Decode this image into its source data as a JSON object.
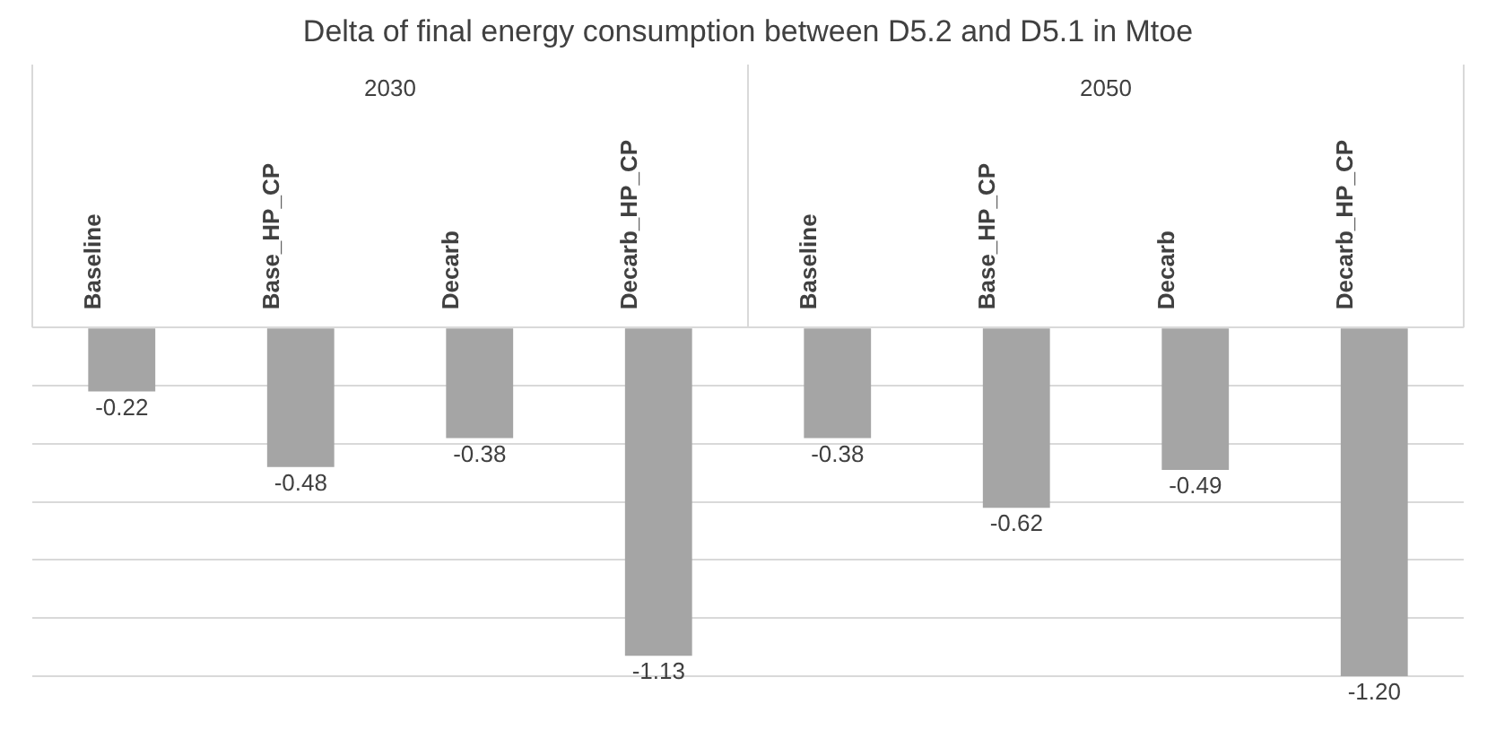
{
  "chart_data": {
    "type": "bar",
    "title": "Delta of final energy consumption between D5.2 and D5.1 in Mtoe",
    "categories": [
      "Baseline",
      "Base_HP_CP",
      "Decarb",
      "Decarb_HP_CP",
      "Baseline",
      "Base_HP_CP",
      "Decarb",
      "Decarb_HP_CP"
    ],
    "values": [
      -0.22,
      -0.48,
      -0.38,
      -1.13,
      -0.38,
      -0.62,
      -0.49,
      -1.2
    ],
    "value_labels": [
      "-0.22",
      "-0.48",
      "-0.38",
      "-1.13",
      "-0.38",
      "-0.62",
      "-0.49",
      "-1.20"
    ],
    "color": "#a5a5a5",
    "annotations": [
      "2030",
      "2050"
    ],
    "ylim": [
      -1.2,
      0
    ],
    "yticks": [
      {
        "value": -1.2,
        "label": null
      },
      {
        "value": -1.0,
        "label": null
      },
      {
        "value": -0.8,
        "label": null
      },
      {
        "value": -0.6,
        "label": null
      },
      {
        "value": -0.4,
        "label": null
      },
      {
        "value": -0.2,
        "label": null
      },
      {
        "value": 0,
        "label": null
      }
    ],
    "grid": "y",
    "tick_labels": "x",
    "legend": false
  }
}
